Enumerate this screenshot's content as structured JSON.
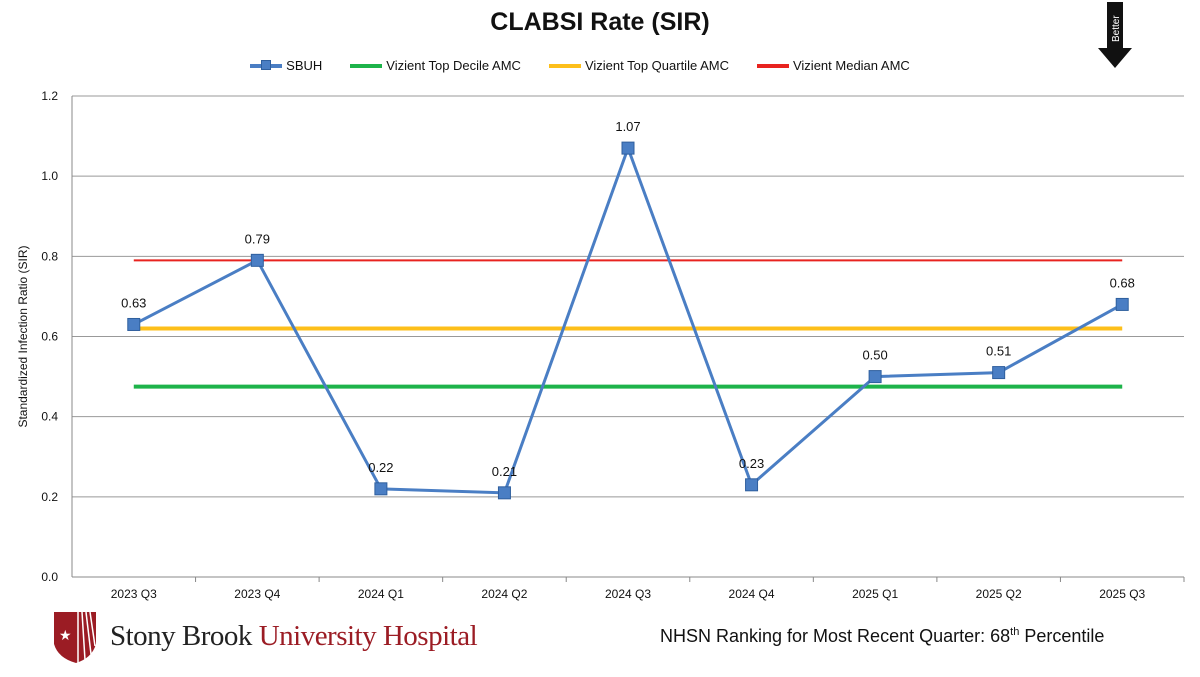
{
  "chart_data": {
    "type": "line",
    "title": "CLABSI Rate (SIR)",
    "ylabel": "Standardized Infection Ratio (SIR)",
    "xlabel": "",
    "ylim": [
      0,
      1.2
    ],
    "yticks": [
      "0.0",
      "0.2",
      "0.4",
      "0.6",
      "0.8",
      "1.0",
      "1.2"
    ],
    "categories": [
      "2023 Q3",
      "2023 Q4",
      "2024 Q1",
      "2024 Q2",
      "2024 Q3",
      "2024 Q4",
      "2025 Q1",
      "2025 Q2",
      "2025 Q3"
    ],
    "grid": true,
    "legend": "top",
    "series": [
      {
        "name": "SBUH",
        "color": "#4a7ec4",
        "values": [
          0.63,
          0.79,
          0.22,
          0.21,
          1.07,
          0.23,
          0.5,
          0.51,
          0.68
        ],
        "labels": [
          "0.63",
          "0.79",
          "0.22",
          "0.21",
          "1.07",
          "0.23",
          "0.50",
          "0.51",
          "0.68"
        ]
      },
      {
        "name": "Vizient Top Decile AMC",
        "color": "#1db34a",
        "value": 0.475
      },
      {
        "name": "Vizient Top Quartile AMC",
        "color": "#fdbf1a",
        "value": 0.62
      },
      {
        "name": "Vizient Median AMC",
        "color": "#e8231f",
        "value": 0.79
      }
    ]
  },
  "indicator": {
    "label": "Better",
    "icon": "down-arrow-icon"
  },
  "logo": {
    "part1": "Stony Brook ",
    "part2": "University Hospital"
  },
  "footer": {
    "ranking_prefix": "NHSN Ranking for Most Recent Quarter: 68",
    "ranking_sup": "th",
    "ranking_suffix": " Percentile"
  }
}
